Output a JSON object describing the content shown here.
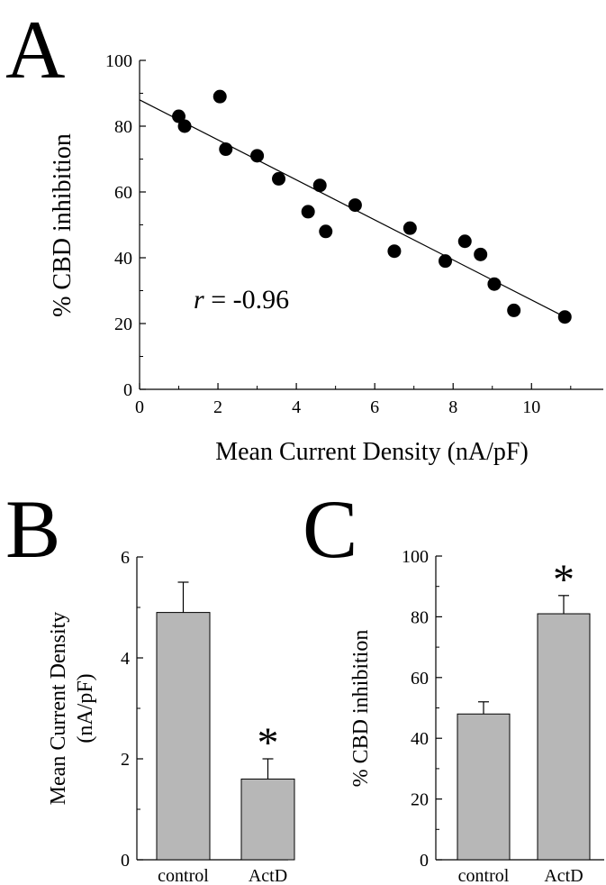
{
  "panels": {
    "A": "A",
    "B": "B",
    "C": "C"
  },
  "colors": {
    "bar_fill": "#b7b7b7",
    "ink": "#000000"
  },
  "chart_data": [
    {
      "id": "A",
      "type": "scatter",
      "xlabel": "Mean Current Density (nA/pF)",
      "ylabel": "% CBD inhibition",
      "xlim": [
        0,
        11
      ],
      "ylim": [
        0,
        100
      ],
      "xticks": [
        "0",
        "2",
        "4",
        "6",
        "8",
        "10"
      ],
      "yticks": [
        "0",
        "20",
        "40",
        "60",
        "80",
        "100"
      ],
      "points": [
        {
          "x": 1.0,
          "y": 83
        },
        {
          "x": 1.15,
          "y": 80
        },
        {
          "x": 2.05,
          "y": 89
        },
        {
          "x": 2.2,
          "y": 73
        },
        {
          "x": 3.0,
          "y": 71
        },
        {
          "x": 3.55,
          "y": 64
        },
        {
          "x": 4.3,
          "y": 54
        },
        {
          "x": 4.6,
          "y": 62
        },
        {
          "x": 4.75,
          "y": 48
        },
        {
          "x": 5.5,
          "y": 56
        },
        {
          "x": 6.5,
          "y": 42
        },
        {
          "x": 6.9,
          "y": 49
        },
        {
          "x": 7.8,
          "y": 39
        },
        {
          "x": 8.3,
          "y": 45
        },
        {
          "x": 8.7,
          "y": 41
        },
        {
          "x": 9.05,
          "y": 32
        },
        {
          "x": 9.55,
          "y": 24
        },
        {
          "x": 10.85,
          "y": 22
        }
      ],
      "fit_line": {
        "x": [
          0,
          10.85
        ],
        "y": [
          88,
          22
        ]
      },
      "annotation": {
        "r_symbol": "r",
        "r_text": " = -0.96"
      }
    },
    {
      "id": "B",
      "type": "bar",
      "ylabel_lines": [
        "Mean Current Density",
        "(nA/pF)"
      ],
      "categories": [
        "control",
        "ActD"
      ],
      "values": [
        4.9,
        1.6
      ],
      "errors": [
        0.6,
        0.4
      ],
      "ylim": [
        0,
        6
      ],
      "yticks": [
        "0",
        "2",
        "4",
        "6"
      ],
      "significance": [
        "",
        "*"
      ]
    },
    {
      "id": "C",
      "type": "bar",
      "ylabel": "% CBD inhibition",
      "categories": [
        "control",
        "ActD"
      ],
      "values": [
        48,
        81
      ],
      "errors": [
        4,
        6
      ],
      "ylim": [
        0,
        100
      ],
      "yticks": [
        "0",
        "20",
        "40",
        "60",
        "80",
        "100"
      ],
      "significance": [
        "",
        "*"
      ]
    }
  ]
}
